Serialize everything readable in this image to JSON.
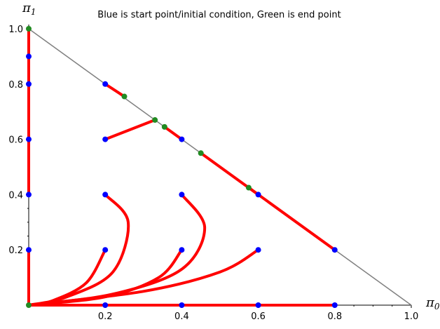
{
  "chart_data": {
    "type": "line",
    "title": "Blue is start point/initial condition, Green is end point",
    "xlabel": {
      "symbol": "π",
      "sub": "0"
    },
    "ylabel": {
      "symbol": "π",
      "sub": "1"
    },
    "xlim": [
      0,
      1.0
    ],
    "ylim": [
      0,
      1.0
    ],
    "x_ticks": [
      {
        "value": 0.2,
        "label": "0.2"
      },
      {
        "value": 0.4,
        "label": "0.4"
      },
      {
        "value": 0.6,
        "label": "0.6"
      },
      {
        "value": 0.8,
        "label": "0.8"
      },
      {
        "value": 1.0,
        "label": "1.0"
      }
    ],
    "y_ticks": [
      {
        "value": 0.2,
        "label": "0.2"
      },
      {
        "value": 0.4,
        "label": "0.4"
      },
      {
        "value": 0.6,
        "label": "0.6"
      },
      {
        "value": 0.8,
        "label": "0.8"
      },
      {
        "value": 1.0,
        "label": "1.0"
      }
    ],
    "simplex_line": {
      "color": "#808080",
      "points": [
        [
          0,
          1
        ],
        [
          1,
          0
        ]
      ]
    },
    "trajectory_color": "#ff0000",
    "start_color": "#0000ff",
    "end_color": "#228b22",
    "trajectories": [
      {
        "points": [
          [
            0.2,
            0.8
          ],
          [
            0.25,
            0.755
          ]
        ]
      },
      {
        "points": [
          [
            0.2,
            0.6
          ],
          [
            0.33,
            0.67
          ]
        ]
      },
      {
        "points": [
          [
            0.4,
            0.6
          ],
          [
            0.355,
            0.645
          ]
        ]
      },
      {
        "points": [
          [
            0.6,
            0.4
          ],
          [
            0.45,
            0.55
          ]
        ]
      },
      {
        "points": [
          [
            0.8,
            0.2
          ],
          [
            0.575,
            0.425
          ]
        ]
      },
      {
        "points": [
          [
            0.2,
            0.4
          ],
          [
            0.26,
            0.3
          ],
          [
            0.22,
            0.12
          ],
          [
            0.1,
            0.03
          ],
          [
            0,
            0
          ]
        ]
      },
      {
        "points": [
          [
            0.4,
            0.4
          ],
          [
            0.46,
            0.28
          ],
          [
            0.4,
            0.13
          ],
          [
            0.22,
            0.04
          ],
          [
            0,
            0
          ]
        ]
      },
      {
        "points": [
          [
            0.2,
            0.2
          ],
          [
            0.15,
            0.08
          ],
          [
            0.06,
            0.015
          ],
          [
            0,
            0
          ]
        ]
      },
      {
        "points": [
          [
            0.4,
            0.2
          ],
          [
            0.34,
            0.1
          ],
          [
            0.2,
            0.03
          ],
          [
            0,
            0
          ]
        ]
      },
      {
        "points": [
          [
            0.6,
            0.2
          ],
          [
            0.5,
            0.12
          ],
          [
            0.3,
            0.05
          ],
          [
            0,
            0
          ]
        ]
      },
      {
        "points": [
          [
            0,
            0.9
          ],
          [
            0,
            1.0
          ]
        ]
      },
      {
        "points": [
          [
            0,
            0.8
          ],
          [
            0,
            1.0
          ]
        ]
      },
      {
        "points": [
          [
            0,
            0.6
          ],
          [
            0,
            1.0
          ]
        ]
      },
      {
        "points": [
          [
            0,
            0.4
          ],
          [
            0,
            1.0
          ]
        ]
      },
      {
        "points": [
          [
            0,
            0.2
          ],
          [
            0,
            0
          ]
        ]
      },
      {
        "points": [
          [
            0.2,
            0
          ],
          [
            0,
            0
          ]
        ]
      },
      {
        "points": [
          [
            0.4,
            0
          ],
          [
            0,
            0
          ]
        ]
      },
      {
        "points": [
          [
            0.6,
            0
          ],
          [
            0,
            0
          ]
        ]
      },
      {
        "points": [
          [
            0.8,
            0
          ],
          [
            0,
            0
          ]
        ]
      }
    ],
    "start_points": [
      [
        0.2,
        0.8
      ],
      [
        0.2,
        0.6
      ],
      [
        0.4,
        0.6
      ],
      [
        0.6,
        0.4
      ],
      [
        0.8,
        0.2
      ],
      [
        0.2,
        0.4
      ],
      [
        0.4,
        0.4
      ],
      [
        0.2,
        0.2
      ],
      [
        0.4,
        0.2
      ],
      [
        0.6,
        0.2
      ],
      [
        0,
        0.9
      ],
      [
        0,
        0.8
      ],
      [
        0,
        0.6
      ],
      [
        0,
        0.4
      ],
      [
        0,
        0.2
      ],
      [
        0.2,
        0
      ],
      [
        0.4,
        0
      ],
      [
        0.6,
        0
      ],
      [
        0.8,
        0
      ]
    ],
    "end_points": [
      [
        0.25,
        0.755
      ],
      [
        0.33,
        0.67
      ],
      [
        0.355,
        0.645
      ],
      [
        0.45,
        0.55
      ],
      [
        0.575,
        0.425
      ],
      [
        0,
        1.0
      ],
      [
        0,
        0
      ]
    ]
  }
}
